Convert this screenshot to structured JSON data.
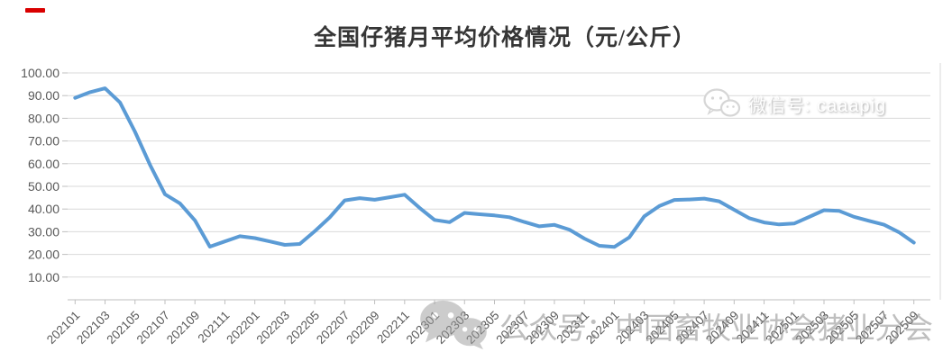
{
  "page": {
    "title": "全国仔猪月平均价格情况（元/公斤）"
  },
  "decorations": {
    "top_left_dash_color": "#d90000"
  },
  "watermarks": {
    "top_right": {
      "icon": "wechat-icon",
      "text": "微信号: caaapig"
    },
    "bottom": {
      "icon": "wechat-icon",
      "text": "公众号：中国畜牧业协会猪业分会"
    }
  },
  "chart_data": {
    "type": "line",
    "title": "全国仔猪月平均价格情况（元/公斤）",
    "x": [
      "202101",
      "202102",
      "202103",
      "202104",
      "202105",
      "202106",
      "202107",
      "202108",
      "202109",
      "202110",
      "202111",
      "202112",
      "202201",
      "202202",
      "202203",
      "202204",
      "202205",
      "202206",
      "202207",
      "202208",
      "202209",
      "202210",
      "202211",
      "202212",
      "202301",
      "202302",
      "202303",
      "202304",
      "202305",
      "202306",
      "202307",
      "202308",
      "202309",
      "202310",
      "202311",
      "202312",
      "202401",
      "202402",
      "202403",
      "202404",
      "202405",
      "202406",
      "202407",
      "202408",
      "202409",
      "202410",
      "202411",
      "202412",
      "202501",
      "202502",
      "202503",
      "202504",
      "202505",
      "202506",
      "202507",
      "202508",
      "202509"
    ],
    "values": [
      89.0,
      91.5,
      93.2,
      87.0,
      74.0,
      59.5,
      46.5,
      42.5,
      35.0,
      23.4,
      25.7,
      28.0,
      27.2,
      25.7,
      24.2,
      24.6,
      30.2,
      36.3,
      43.8,
      44.8,
      44.1,
      45.2,
      46.3,
      40.5,
      35.2,
      34.2,
      38.3,
      37.7,
      37.2,
      36.4,
      34.3,
      32.4,
      33.0,
      30.9,
      27.0,
      23.8,
      23.3,
      27.5,
      36.8,
      41.3,
      44.0,
      44.2,
      44.6,
      43.4,
      39.7,
      36.0,
      34.1,
      33.2,
      33.6,
      36.5,
      39.5,
      39.2,
      36.6,
      34.8,
      33.1,
      29.8,
      25.2
    ],
    "x_tick_interval": 2,
    "x_tick_labels": [
      "202101",
      "202103",
      "202105",
      "202107",
      "202109",
      "202111",
      "202201",
      "202203",
      "202205",
      "202207",
      "202209",
      "202211",
      "202301",
      "202303",
      "202305",
      "202307",
      "202309",
      "202311",
      "202401",
      "202403",
      "202405",
      "202407",
      "202409",
      "202411",
      "202501",
      "202503",
      "202505",
      "202507",
      "202509"
    ],
    "y_ticks": [
      10,
      20,
      30,
      40,
      50,
      60,
      70,
      80,
      90,
      100
    ],
    "y_tick_format": "0.00",
    "ylim": [
      0,
      105
    ],
    "grid": true,
    "legend": false,
    "xlabel": "",
    "ylabel": "",
    "line_color": "#5B9BD5",
    "gridline_color": "#d9d9d9",
    "axis_line_color": "#bfbfbf",
    "axis_label_color": "#595959"
  }
}
